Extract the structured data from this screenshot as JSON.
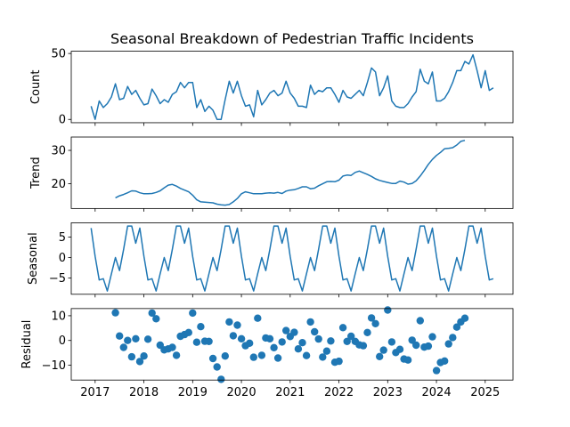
{
  "chart_data": {
    "type": "line",
    "title": "Seasonal Breakdown of Pedestrian Traffic Incidents",
    "x_start_year_fraction": 2016.9167,
    "x_step_months": 1,
    "xlim": [
      2016.51,
      2025.57
    ],
    "x_ticks": [
      2017,
      2018,
      2019,
      2020,
      2021,
      2022,
      2023,
      2024,
      2025
    ],
    "x_tick_labels": [
      "2017",
      "2018",
      "2019",
      "2020",
      "2021",
      "2022",
      "2023",
      "2024",
      "2025"
    ],
    "color": "#1f77b4",
    "panels": [
      {
        "name": "observed",
        "ylabel": "Count",
        "kind": "line",
        "offset": 0,
        "ylim": [
          -2.5,
          51.7
        ],
        "y_ticks": [
          0,
          50
        ],
        "y_tick_labels": [
          "0",
          "50"
        ],
        "values": [
          10,
          0,
          14,
          9,
          12,
          17,
          27,
          15,
          16,
          25,
          19,
          22,
          16,
          11,
          12,
          23,
          18,
          12,
          15,
          13,
          19,
          21,
          28,
          24,
          28,
          28,
          9,
          15,
          6,
          10,
          7,
          0,
          0,
          15,
          29,
          20,
          29,
          18,
          10,
          11,
          2,
          22,
          11,
          15,
          20,
          22,
          18,
          20,
          29,
          20,
          16,
          10,
          10,
          9,
          26,
          19,
          22,
          21,
          24,
          24,
          19,
          13,
          22,
          17,
          16,
          19,
          22,
          18,
          28,
          39,
          36,
          18,
          24,
          33,
          14,
          10,
          9,
          9,
          12,
          17,
          21,
          38,
          29,
          27,
          36,
          14,
          14,
          16,
          21,
          28,
          37,
          37,
          44,
          42,
          49,
          37,
          24,
          37,
          22,
          24
        ]
      },
      {
        "name": "trend",
        "ylabel": "Trend",
        "kind": "line",
        "offset": 6,
        "ylim": [
          12.6,
          34.0
        ],
        "y_ticks": [
          20,
          30
        ],
        "y_tick_labels": [
          "20",
          "30"
        ],
        "values": [
          15.8,
          16.4,
          16.8,
          17.3,
          17.9,
          17.8,
          17.3,
          17.0,
          17.0,
          17.1,
          17.4,
          17.9,
          18.8,
          19.6,
          19.8,
          19.3,
          18.6,
          18.1,
          17.6,
          16.6,
          15.2,
          14.6,
          14.5,
          14.4,
          14.3,
          13.9,
          13.7,
          13.6,
          13.8,
          14.6,
          15.6,
          17.0,
          17.6,
          17.3,
          17.0,
          17.0,
          17.0,
          17.2,
          17.3,
          17.2,
          17.4,
          17.1,
          17.8,
          18.1,
          18.2,
          18.6,
          19.1,
          19.1,
          18.5,
          18.7,
          19.4,
          20.0,
          20.6,
          20.7,
          20.6,
          21.1,
          22.3,
          22.6,
          22.5,
          23.4,
          23.8,
          23.3,
          22.8,
          22.2,
          21.5,
          21.0,
          20.7,
          20.4,
          20.1,
          20.1,
          20.8,
          20.5,
          19.9,
          20.1,
          20.9,
          22.3,
          24.0,
          25.8,
          27.3,
          28.5,
          29.4,
          30.5,
          30.6,
          30.8,
          31.6,
          32.7,
          33.0
        ]
      },
      {
        "name": "seasonal",
        "ylabel": "Seasonal",
        "kind": "line",
        "offset": 0,
        "ylim": [
          -9.0,
          8.5
        ],
        "y_ticks": [
          -5,
          0,
          5
        ],
        "y_tick_labels": [
          "−5",
          "0",
          "5"
        ],
        "cycle": [
          7.2,
          0.3,
          -5.5,
          -5.2,
          -8.2,
          -4.0,
          0.0,
          -3.2,
          2.0,
          7.7,
          7.7,
          3.5
        ],
        "length": 100
      },
      {
        "name": "residual",
        "ylabel": "Residual",
        "kind": "scatter",
        "offset": 6,
        "ylim": [
          -16.0,
          12.9
        ],
        "y_ticks": [
          -10,
          0,
          10
        ],
        "y_tick_labels": [
          "−10",
          "0",
          "10"
        ],
        "values": [
          11.2,
          1.8,
          -2.8,
          0,
          -6.6,
          0.7,
          -8.5,
          -6.3,
          0.5,
          11.1,
          8.8,
          -1.9,
          -3.8,
          -3.4,
          -2.8,
          -6,
          1.7,
          2.4,
          3.2,
          11.1,
          -0.7,
          5.6,
          -0.3,
          -0.4,
          -7.3,
          -10.7,
          -15.7,
          -6.3,
          7.5,
          1.9,
          6.2,
          0.7,
          -2.1,
          -1.1,
          -6.8,
          9,
          -6,
          1,
          0.7,
          -2.9,
          -7.1,
          -0.6,
          4,
          1.6,
          3.3,
          -3.4,
          -0.9,
          -6.1,
          7.5,
          3.5,
          0.6,
          -6.7,
          -4.3,
          -0.2,
          -8.8,
          -8.4,
          5.2,
          -0.4,
          1.7,
          -0.4,
          -1.8,
          -2.1,
          3.2,
          9.1,
          6.8,
          -6.5,
          -3.9,
          12.3,
          -0.6,
          -4.9,
          -3.6,
          -7.5,
          -7.9,
          0.1,
          -1.9,
          8,
          -2.7,
          -2.3,
          1.5,
          -12.2,
          -8.9,
          -8.3,
          -1.4,
          1.2,
          5.4,
          7.5,
          9
        ]
      }
    ]
  }
}
